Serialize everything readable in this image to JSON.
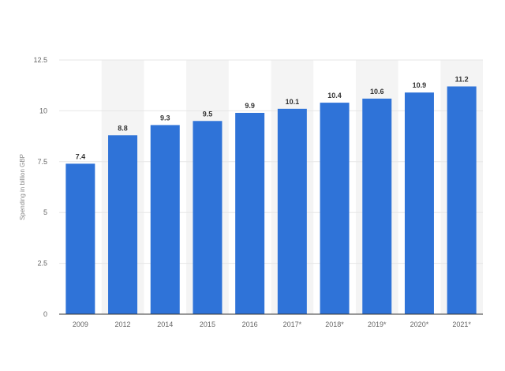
{
  "chart_data": {
    "type": "bar",
    "categories": [
      "2009",
      "2012",
      "2014",
      "2015",
      "2016",
      "2017*",
      "2018*",
      "2019*",
      "2020*",
      "2021*"
    ],
    "values": [
      7.4,
      8.8,
      9.3,
      9.5,
      9.9,
      10.1,
      10.4,
      10.6,
      10.9,
      11.2
    ],
    "data_labels": [
      "7.4",
      "8.8",
      "9.3",
      "9.5",
      "9.9",
      "10.1",
      "10.4",
      "10.6",
      "10.9",
      "11.2"
    ],
    "y_ticks": [
      0,
      2.5,
      5,
      7.5,
      10,
      12.5
    ],
    "y_tick_labels": [
      "0",
      "2.5",
      "5",
      "7.5",
      "10",
      "12.5"
    ],
    "ylim": [
      0,
      12.5
    ],
    "xlabel": "",
    "ylabel": "Spending in billion GBP",
    "title": "",
    "grid": true,
    "colors": {
      "bar": "#2f73d8",
      "band": "#f4f4f4",
      "grid": "#e6e6e6",
      "axis": "#333333"
    }
  }
}
